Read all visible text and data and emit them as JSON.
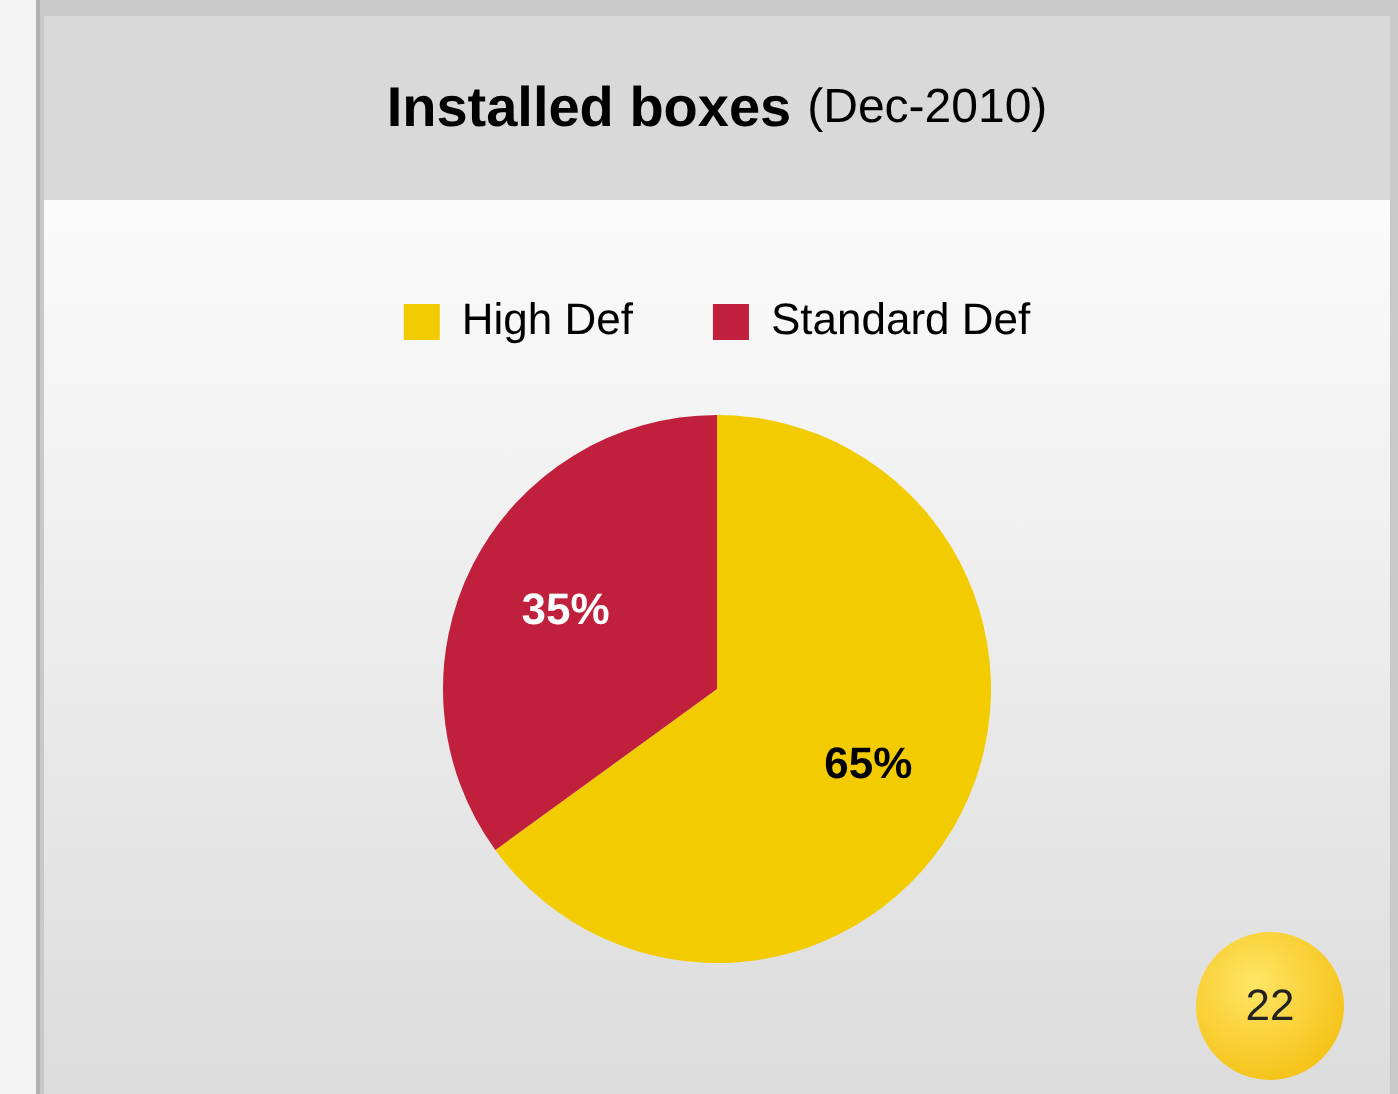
{
  "chart_data": {
    "type": "pie",
    "title": "Installed boxes",
    "subtitle": "(Dec-2010)",
    "categories": [
      "High Def",
      "Standard Def"
    ],
    "values": [
      65,
      35
    ],
    "colors": [
      "#f2cc00",
      "#c0203c"
    ],
    "value_labels": [
      "65%",
      "35%"
    ],
    "legend": "top",
    "annotations": [
      "22"
    ]
  }
}
